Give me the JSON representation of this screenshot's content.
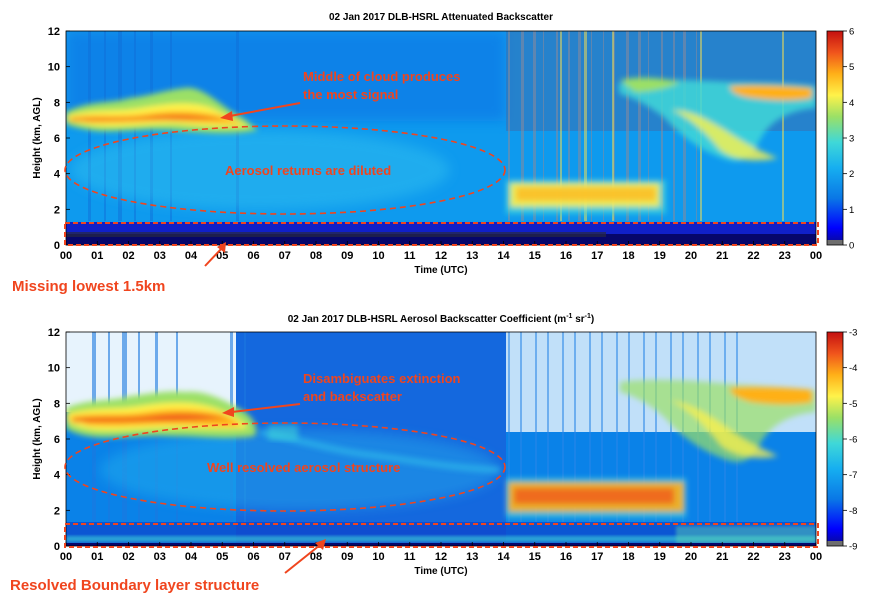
{
  "colors": {
    "annotation": "#f0451e",
    "background": "#0ea0ee",
    "colormap": [
      "#0a0a8c",
      "#0000ff",
      "#0a78e6",
      "#16aef0",
      "#3fd8d8",
      "#9be066",
      "#fff24a",
      "#ffb018",
      "#f0541c",
      "#c41010"
    ]
  },
  "chart_data": [
    {
      "type": "heatmap",
      "title": "02 Jan 2017  DLB-HSRL Attenuated Backscatter",
      "xlabel": "Time (UTC)",
      "ylabel": "Height (km, AGL)",
      "xlim": [
        0,
        24
      ],
      "ylim": [
        0,
        12
      ],
      "x_ticks": [
        "00",
        "01",
        "02",
        "03",
        "04",
        "05",
        "06",
        "07",
        "08",
        "09",
        "10",
        "11",
        "12",
        "13",
        "14",
        "15",
        "16",
        "17",
        "18",
        "19",
        "20",
        "21",
        "22",
        "23",
        "00"
      ],
      "y_ticks": [
        0,
        2,
        4,
        6,
        8,
        10,
        12
      ],
      "colorbar": {
        "min": 0,
        "max": 6,
        "ticks": [
          0,
          1,
          2,
          3,
          4,
          5,
          6
        ]
      },
      "features": {
        "cloud_layer": {
          "time_start": 0,
          "time_end": 6.3,
          "height_min": 6,
          "height_max": 8.5
        },
        "upper_cloud": {
          "time_start": 19.3,
          "time_end": 23.8,
          "height_min": 3.8,
          "height_max": 9.3
        },
        "low_aerosol": {
          "time_start": 14,
          "time_end": 19,
          "height_min": 1.5,
          "height_max": 3.5
        },
        "missing_layer_top_km": 1.5
      },
      "annotations": {
        "cloud_note": [
          "Middle of cloud produces",
          "the most signal"
        ],
        "aerosol_note": "Aerosol returns are diluted",
        "missing_note": "Missing lowest 1.5km"
      }
    },
    {
      "type": "heatmap",
      "title": "02 Jan 2017  DLB-HSRL Aerosol Backscatter Coefficient (m",
      "title_exp1": "-1",
      "title_mid": " sr",
      "title_exp2": "-1",
      "title_end": ")",
      "xlabel": "Time (UTC)",
      "ylabel": "Height (km, AGL)",
      "xlim": [
        0,
        24
      ],
      "ylim": [
        0,
        12
      ],
      "x_ticks": [
        "00",
        "01",
        "02",
        "03",
        "04",
        "05",
        "06",
        "07",
        "08",
        "09",
        "10",
        "11",
        "12",
        "13",
        "14",
        "15",
        "16",
        "17",
        "18",
        "19",
        "20",
        "21",
        "22",
        "23",
        "00"
      ],
      "y_ticks": [
        0,
        2,
        4,
        6,
        8,
        10,
        12
      ],
      "colorbar": {
        "min": -9,
        "max": -3,
        "ticks": [
          -9,
          -8,
          -7,
          -6,
          -5,
          -4,
          -3
        ]
      },
      "features": {
        "cloud_layer": {
          "time_start": 0,
          "time_end": 6.3,
          "height_min": 6,
          "height_max": 8.5
        },
        "upper_cloud": {
          "time_start": 19.3,
          "time_end": 23.8,
          "height_min": 3.8,
          "height_max": 9.3
        },
        "low_aerosol": {
          "time_start": 14,
          "time_end": 19,
          "height_min": 1.5,
          "height_max": 3.5
        },
        "boundary_layer_top_km": 1.3
      },
      "annotations": {
        "cloud_note": [
          "Disambiguates extinction",
          "and backscatter"
        ],
        "aerosol_note": "Well resolved aerosol structure",
        "boundary_note": "Resolved Boundary layer structure"
      }
    }
  ]
}
